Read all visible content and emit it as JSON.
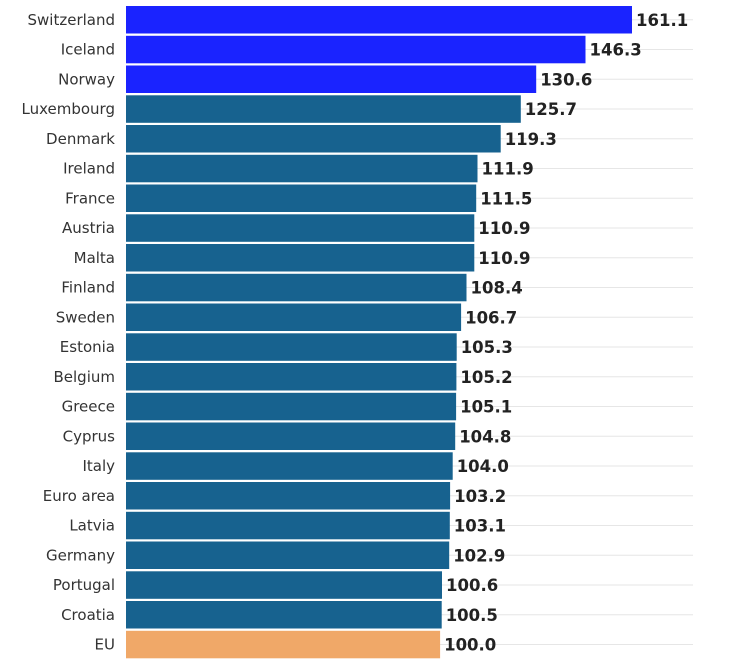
{
  "chart_data": {
    "type": "bar",
    "orientation": "horizontal",
    "title": "",
    "xlabel": "",
    "ylabel": "",
    "xlim": [
      0,
      161.1
    ],
    "grid": true,
    "categories": [
      "Switzerland",
      "Iceland",
      "Norway",
      "Luxembourg",
      "Denmark",
      "Ireland",
      "France",
      "Austria",
      "Malta",
      "Finland",
      "Sweden",
      "Estonia",
      "Belgium",
      "Greece",
      "Cyprus",
      "Italy",
      "Euro area",
      "Latvia",
      "Germany",
      "Portugal",
      "Croatia",
      "EU"
    ],
    "values": [
      161.1,
      146.3,
      130.6,
      125.7,
      119.3,
      111.9,
      111.5,
      110.9,
      110.9,
      108.4,
      106.7,
      105.3,
      105.2,
      105.1,
      104.8,
      104.0,
      103.2,
      103.1,
      102.9,
      100.6,
      100.5,
      100.0
    ],
    "value_labels": [
      "161.1",
      "146.3",
      "130.6",
      "125.7",
      "119.3",
      "111.9",
      "111.5",
      "110.9",
      "110.9",
      "108.4",
      "106.7",
      "105.3",
      "105.2",
      "105.1",
      "104.8",
      "104.0",
      "103.2",
      "103.1",
      "102.9",
      "100.6",
      "100.5",
      "100.0"
    ],
    "bar_groups": [
      "non-eu",
      "non-eu",
      "non-eu",
      "eu",
      "eu",
      "eu",
      "eu",
      "eu",
      "eu",
      "eu",
      "eu",
      "eu",
      "eu",
      "eu",
      "eu",
      "eu",
      "eu",
      "eu",
      "eu",
      "eu",
      "eu",
      "eu-average"
    ],
    "colors": {
      "non-eu": "#1a23ff",
      "eu": "#17628f",
      "eu-average": "#f0a868",
      "grid": "#e6e6e6",
      "label_text": "#333333",
      "value_text": "#222222"
    }
  }
}
